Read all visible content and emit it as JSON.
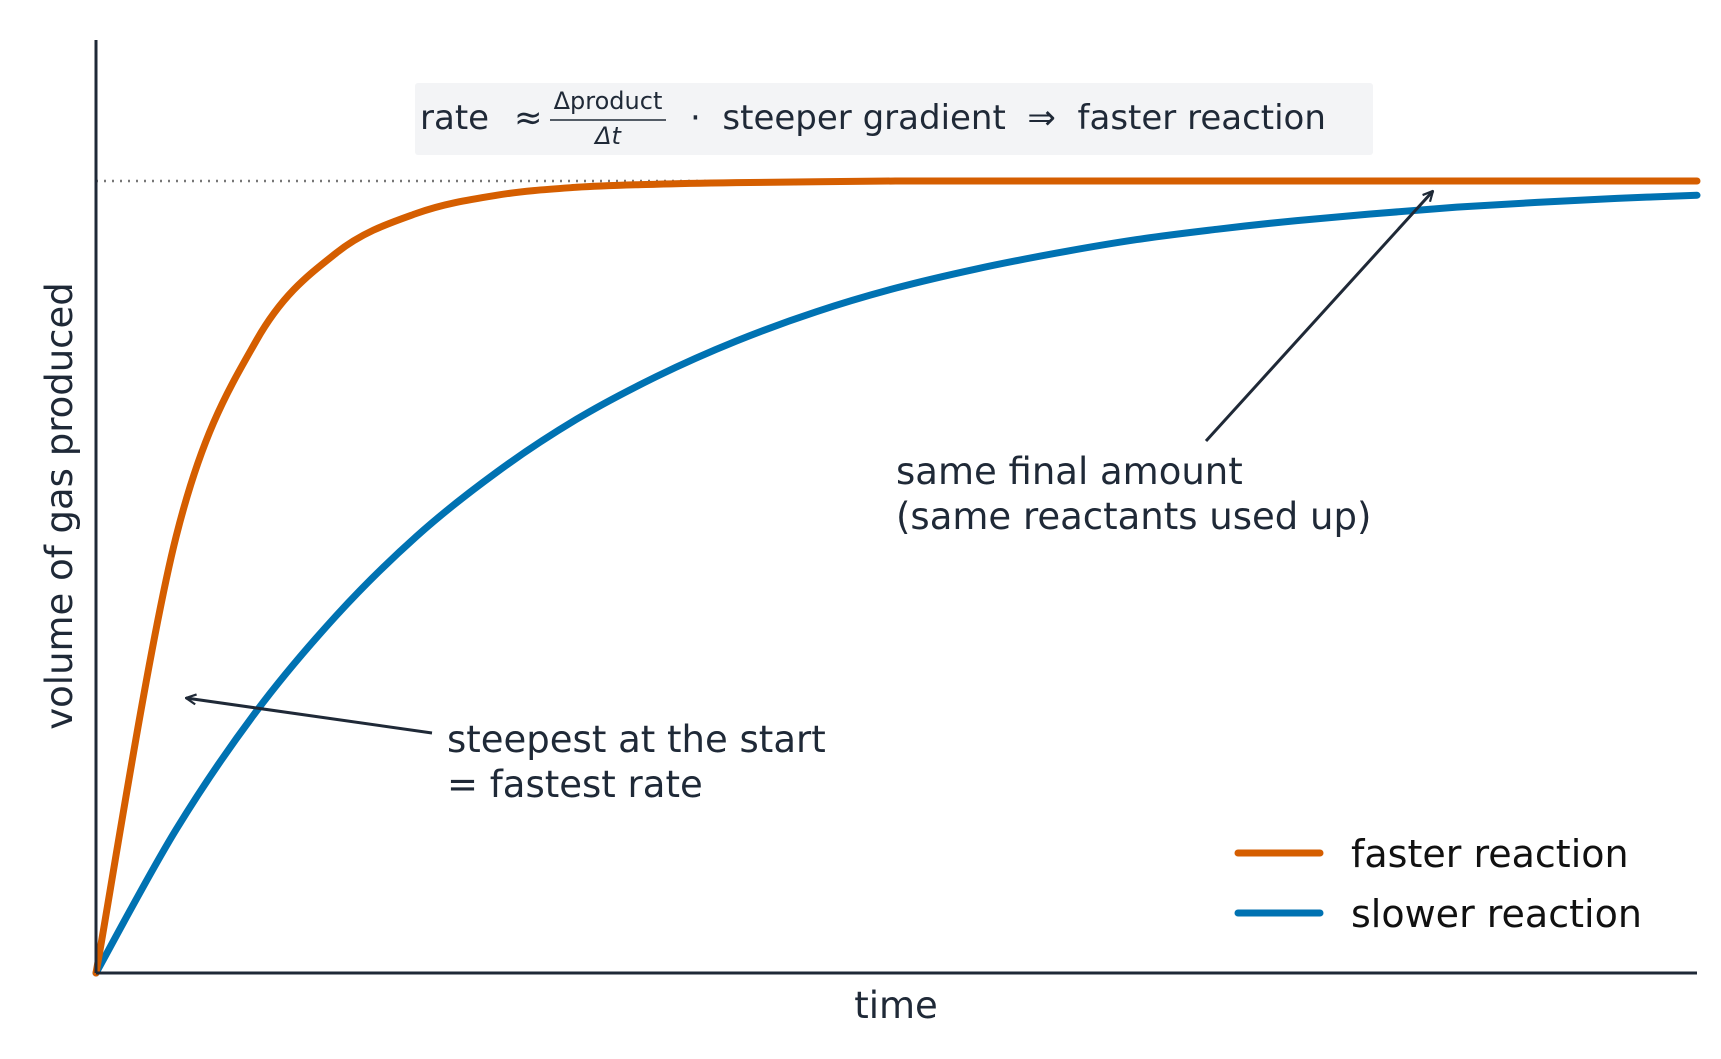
{
  "chart_data": {
    "type": "line",
    "title": "",
    "xlabel": "time",
    "ylabel": "volume of gas produced",
    "xlim": [
      0,
      10
    ],
    "ylim": [
      0,
      1.1
    ],
    "grid": false,
    "legend_position": "bottom-right",
    "x": [
      0,
      0.5,
      1,
      1.5,
      2,
      2.5,
      3,
      3.5,
      4,
      4.5,
      5,
      5.5,
      6,
      6.5,
      7,
      7.5,
      8,
      8.5,
      9,
      9.5,
      10
    ],
    "series": [
      {
        "name": "faster reaction",
        "color": "#d55e00",
        "values": [
          0,
          0.551,
          0.798,
          0.909,
          0.959,
          0.982,
          0.992,
          0.996,
          0.998,
          0.999,
          1.0,
          1.0,
          1.0,
          1.0,
          1.0,
          1.0,
          1.0,
          1.0,
          1.0,
          1.0,
          1.0
        ]
      },
      {
        "name": "slower reaction",
        "color": "#0072b2",
        "values": [
          0,
          0.181,
          0.33,
          0.451,
          0.551,
          0.632,
          0.699,
          0.753,
          0.798,
          0.835,
          0.865,
          0.889,
          0.909,
          0.926,
          0.939,
          0.95,
          0.959,
          0.967,
          0.973,
          0.978,
          0.982
        ]
      }
    ],
    "reference_line": {
      "y": 1.0,
      "style": "dotted",
      "color": "#777777"
    },
    "annotations": {
      "formula_prefix": "rate",
      "formula_approx": "≈",
      "formula_numerator": "Δproduct",
      "formula_denominator": "Δt",
      "formula_suffix": "·  steeper gradient  ⇒  faster reaction",
      "start_note_line1": "steepest at the start",
      "start_note_line2": "= fastest rate",
      "final_note_line1": "same final amount",
      "final_note_line2": "(same reactants used up)"
    },
    "colors": {
      "axis": "#1f2937",
      "text": "#1f2937",
      "formula_box": "#f3f4f6"
    }
  }
}
